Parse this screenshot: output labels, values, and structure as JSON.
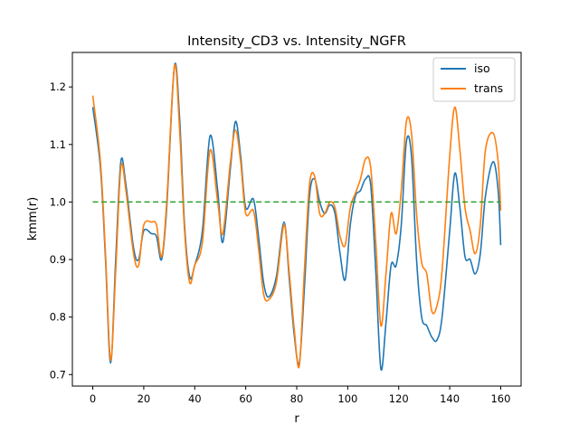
{
  "chart_data": {
    "type": "line",
    "title": "Intensity_CD3 vs. Intensity_NGFR",
    "xlabel": "r",
    "ylabel": "kmm(r)",
    "xlim": [
      -8,
      168
    ],
    "ylim": [
      0.68,
      1.26
    ],
    "xticks": [
      0,
      20,
      40,
      60,
      80,
      100,
      120,
      140,
      160
    ],
    "yticks": [
      0.7,
      0.8,
      0.9,
      1.0,
      1.1,
      1.2
    ],
    "grid": false,
    "legend_position": "top-right",
    "series": [
      {
        "name": "iso",
        "color": "#1f77b4",
        "points": [
          [
            0,
            1.165
          ],
          [
            3,
            1.06
          ],
          [
            5,
            0.9
          ],
          [
            7,
            0.72
          ],
          [
            9,
            0.9
          ],
          [
            11,
            1.07
          ],
          [
            13,
            1.03
          ],
          [
            16,
            0.92
          ],
          [
            18,
            0.9
          ],
          [
            20,
            0.95
          ],
          [
            23,
            0.945
          ],
          [
            25,
            0.94
          ],
          [
            27,
            0.9
          ],
          [
            29,
            0.99
          ],
          [
            32,
            1.235
          ],
          [
            34,
            1.15
          ],
          [
            36,
            0.96
          ],
          [
            38,
            0.87
          ],
          [
            40,
            0.89
          ],
          [
            43,
            0.95
          ],
          [
            46,
            1.115
          ],
          [
            49,
            1.02
          ],
          [
            51,
            0.93
          ],
          [
            54,
            1.06
          ],
          [
            56,
            1.14
          ],
          [
            58,
            1.08
          ],
          [
            60,
            0.99
          ],
          [
            63,
            1.005
          ],
          [
            65,
            0.94
          ],
          [
            67,
            0.86
          ],
          [
            69,
            0.835
          ],
          [
            72,
            0.87
          ],
          [
            75,
            0.965
          ],
          [
            77,
            0.87
          ],
          [
            79,
            0.77
          ],
          [
            81,
            0.72
          ],
          [
            83,
            0.85
          ],
          [
            85,
            1.01
          ],
          [
            87,
            1.04
          ],
          [
            89,
            1.0
          ],
          [
            91,
            0.98
          ],
          [
            93,
            0.995
          ],
          [
            95,
            0.98
          ],
          [
            97,
            0.91
          ],
          [
            99,
            0.865
          ],
          [
            101,
            0.96
          ],
          [
            103,
            1.01
          ],
          [
            105,
            1.02
          ],
          [
            107,
            1.04
          ],
          [
            109,
            1.03
          ],
          [
            111,
            0.88
          ],
          [
            113,
            0.71
          ],
          [
            115,
            0.79
          ],
          [
            117,
            0.89
          ],
          [
            119,
            0.89
          ],
          [
            121,
            0.96
          ],
          [
            123,
            1.105
          ],
          [
            125,
            1.08
          ],
          [
            127,
            0.9
          ],
          [
            129,
            0.8
          ],
          [
            131,
            0.785
          ],
          [
            133,
            0.765
          ],
          [
            135,
            0.76
          ],
          [
            137,
            0.8
          ],
          [
            140,
            0.95
          ],
          [
            142,
            1.05
          ],
          [
            144,
            0.99
          ],
          [
            146,
            0.905
          ],
          [
            148,
            0.9
          ],
          [
            150,
            0.875
          ],
          [
            152,
            0.91
          ],
          [
            154,
            1.01
          ],
          [
            157,
            1.07
          ],
          [
            159,
            1.02
          ],
          [
            160,
            0.925
          ]
        ]
      },
      {
        "name": "trans",
        "color": "#ff7f0e",
        "points": [
          [
            0,
            1.185
          ],
          [
            3,
            1.07
          ],
          [
            5,
            0.91
          ],
          [
            7,
            0.725
          ],
          [
            9,
            0.88
          ],
          [
            11,
            1.06
          ],
          [
            13,
            1.02
          ],
          [
            16,
            0.91
          ],
          [
            18,
            0.89
          ],
          [
            20,
            0.96
          ],
          [
            23,
            0.965
          ],
          [
            25,
            0.96
          ],
          [
            27,
            0.905
          ],
          [
            29,
            1.0
          ],
          [
            32,
            1.235
          ],
          [
            34,
            1.13
          ],
          [
            36,
            0.95
          ],
          [
            38,
            0.86
          ],
          [
            40,
            0.89
          ],
          [
            43,
            0.93
          ],
          [
            46,
            1.09
          ],
          [
            49,
            1.0
          ],
          [
            51,
            0.945
          ],
          [
            54,
            1.07
          ],
          [
            56,
            1.125
          ],
          [
            58,
            1.07
          ],
          [
            60,
            0.98
          ],
          [
            63,
            0.985
          ],
          [
            65,
            0.92
          ],
          [
            67,
            0.84
          ],
          [
            69,
            0.83
          ],
          [
            72,
            0.86
          ],
          [
            75,
            0.96
          ],
          [
            77,
            0.88
          ],
          [
            79,
            0.78
          ],
          [
            81,
            0.715
          ],
          [
            83,
            0.88
          ],
          [
            85,
            1.03
          ],
          [
            87,
            1.045
          ],
          [
            89,
            0.98
          ],
          [
            91,
            0.98
          ],
          [
            93,
            1.0
          ],
          [
            95,
            0.99
          ],
          [
            97,
            0.94
          ],
          [
            99,
            0.925
          ],
          [
            101,
            0.99
          ],
          [
            103,
            1.015
          ],
          [
            105,
            1.04
          ],
          [
            107,
            1.075
          ],
          [
            109,
            1.06
          ],
          [
            111,
            0.93
          ],
          [
            113,
            0.785
          ],
          [
            115,
            0.875
          ],
          [
            117,
            0.98
          ],
          [
            119,
            0.945
          ],
          [
            121,
            1.02
          ],
          [
            123,
            1.14
          ],
          [
            125,
            1.12
          ],
          [
            127,
            0.98
          ],
          [
            129,
            0.895
          ],
          [
            131,
            0.875
          ],
          [
            133,
            0.81
          ],
          [
            135,
            0.82
          ],
          [
            137,
            0.88
          ],
          [
            140,
            1.08
          ],
          [
            142,
            1.165
          ],
          [
            144,
            1.09
          ],
          [
            146,
            0.99
          ],
          [
            148,
            0.95
          ],
          [
            150,
            0.91
          ],
          [
            152,
            0.96
          ],
          [
            154,
            1.09
          ],
          [
            157,
            1.12
          ],
          [
            159,
            1.07
          ],
          [
            160,
            0.985
          ]
        ]
      },
      {
        "name": "",
        "color": "#2ca02c",
        "dashed": true,
        "points": [
          [
            0,
            1.0
          ],
          [
            160,
            1.0
          ]
        ]
      }
    ]
  }
}
